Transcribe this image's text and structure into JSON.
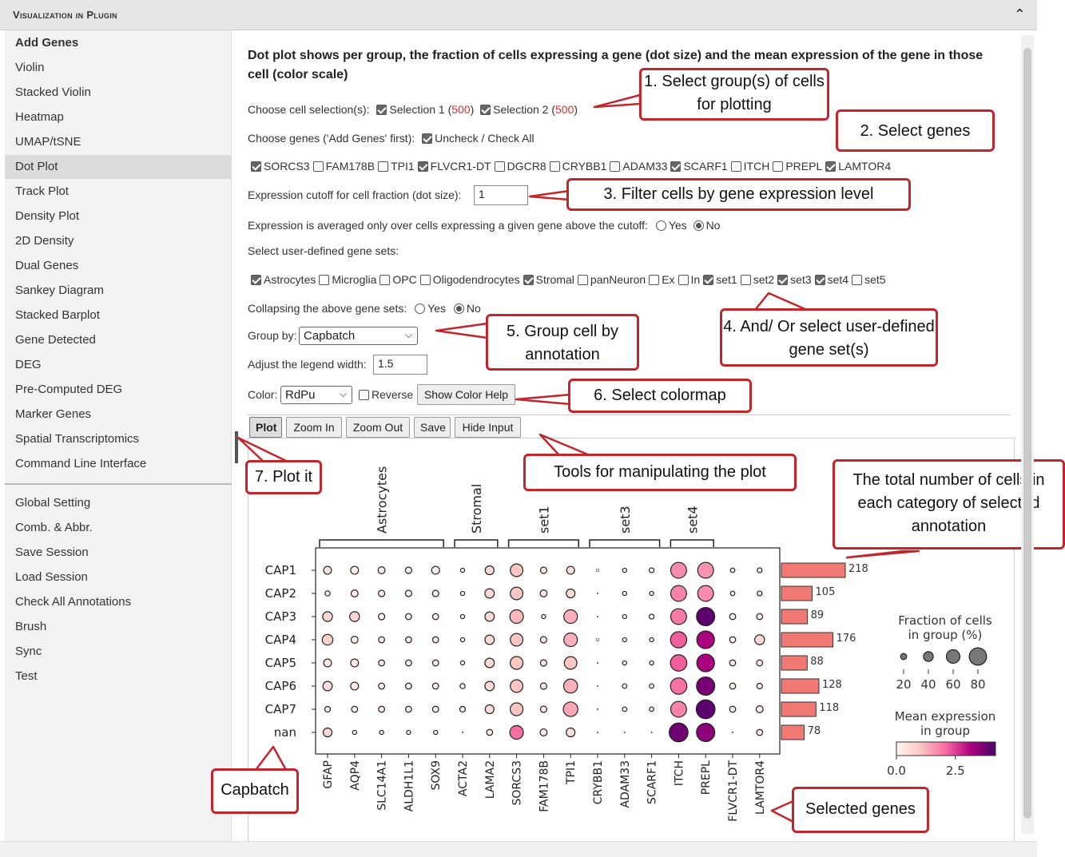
{
  "panel": {
    "title": "Visualization in Plugin",
    "collapse_icon": "chevron-up-icon"
  },
  "sidebar": {
    "group1": [
      "Add Genes",
      "Violin",
      "Stacked Violin",
      "Heatmap",
      "UMAP/tSNE",
      "Dot Plot",
      "Track Plot",
      "Density Plot",
      "2D Density",
      "Dual Genes",
      "Sankey Diagram",
      "Stacked Barplot",
      "Gene Detected",
      "DEG",
      "Pre-Computed DEG",
      "Marker Genes",
      "Spatial Transcriptomics",
      "Command Line Interface"
    ],
    "group2": [
      "Global Setting",
      "Comb. & Abbr.",
      "Save Session",
      "Load Session",
      "Check All Annotations",
      "Brush",
      "Sync",
      "Test"
    ],
    "active": "Dot Plot"
  },
  "form": {
    "heading": "Dot plot shows per group, the fraction of cells expressing a gene (dot size) and the mean expression of the gene in those cell (color scale)",
    "cell_selection_label": "Choose cell selection(s):",
    "selections": [
      {
        "name": "Selection 1",
        "count": "500",
        "checked": true
      },
      {
        "name": "Selection 2",
        "count": "500",
        "checked": true
      }
    ],
    "genes_label": "Choose genes ('Add Genes' first):",
    "check_all_label": "Uncheck / Check All",
    "genes": [
      {
        "name": "SORCS3",
        "checked": true
      },
      {
        "name": "FAM178B",
        "checked": false
      },
      {
        "name": "TPI1",
        "checked": false
      },
      {
        "name": "FLVCR1-DT",
        "checked": true
      },
      {
        "name": "DGCR8",
        "checked": false
      },
      {
        "name": "CRYBB1",
        "checked": false
      },
      {
        "name": "ADAM33",
        "checked": false
      },
      {
        "name": "SCARF1",
        "checked": true
      },
      {
        "name": "ITCH",
        "checked": false
      },
      {
        "name": "PREPL",
        "checked": false
      },
      {
        "name": "LAMTOR4",
        "checked": true
      }
    ],
    "cutoff_label": "Expression cutoff for cell fraction (dot size):",
    "cutoff_value": "1",
    "averaged_label": "Expression is averaged only over cells expressing a given gene above the cutoff:",
    "yes": "Yes",
    "no": "No",
    "gene_sets_label": "Select user-defined gene sets:",
    "gene_sets": [
      {
        "name": "Astrocytes",
        "checked": true
      },
      {
        "name": "Microglia",
        "checked": false
      },
      {
        "name": "OPC",
        "checked": false
      },
      {
        "name": "Oligodendrocytes",
        "checked": false
      },
      {
        "name": "Stromal",
        "checked": true
      },
      {
        "name": "panNeuron",
        "checked": false
      },
      {
        "name": "Ex",
        "checked": false
      },
      {
        "name": "In",
        "checked": false
      },
      {
        "name": "set1",
        "checked": true
      },
      {
        "name": "set2",
        "checked": false
      },
      {
        "name": "set3",
        "checked": true
      },
      {
        "name": "set4",
        "checked": true
      },
      {
        "name": "set5",
        "checked": false
      }
    ],
    "collapse_label": "Collapsing the above gene sets:",
    "group_by_label": "Group by:",
    "group_by_value": "Capbatch",
    "legend_width_label": "Adjust the legend width:",
    "legend_width_value": "1.5",
    "color_label": "Color:",
    "color_value": "RdPu",
    "reverse_label": "Reverse",
    "show_color_help": "Show Color Help"
  },
  "toolbar": {
    "plot": "Plot",
    "zoom_in": "Zoom In",
    "zoom_out": "Zoom Out",
    "save": "Save",
    "hide_input": "Hide Input"
  },
  "callouts": {
    "c1": "1. Select group(s) of cells for plotting",
    "c2": "2. Select genes",
    "c3": "3. Filter cells by gene expression level",
    "c4": "4. And/ Or select user-defined gene set(s)",
    "c5": "5. Group cell by annotation",
    "c6": "6. Select colormap",
    "c7": "7. Plot it",
    "tools": "Tools for manipulating the plot",
    "total": "The total number of cells in each category of selected annotation",
    "capbatch": "Capbatch",
    "selected_genes": "Selected genes"
  },
  "chart_data": {
    "type": "scatter",
    "subtype": "dotplot",
    "groups": [
      "CAP1",
      "CAP2",
      "CAP3",
      "CAP4",
      "CAP5",
      "CAP6",
      "CAP7",
      "nan"
    ],
    "genes": [
      "GFAP",
      "AQP4",
      "SLC14A1",
      "ALDH1L1",
      "SOX9",
      "ACTA2",
      "LAMA2",
      "SORCS3",
      "FAM178B",
      "TPI1",
      "CRYBB1",
      "ADAM33",
      "SCARF1",
      "ITCH",
      "PREPL",
      "FLVCR1-DT",
      "LAMTOR4"
    ],
    "gene_sets": [
      {
        "name": "Astrocytes",
        "genes": [
          "GFAP",
          "AQP4",
          "SLC14A1",
          "ALDH1L1",
          "SOX9"
        ]
      },
      {
        "name": "Stromal",
        "genes": [
          "ACTA2",
          "LAMA2"
        ]
      },
      {
        "name": "set1",
        "genes": [
          "SORCS3",
          "FAM178B",
          "TPI1"
        ]
      },
      {
        "name": "set3",
        "genes": [
          "CRYBB1",
          "ADAM33",
          "SCARF1"
        ]
      },
      {
        "name": "set4",
        "genes": [
          "ITCH",
          "PREPL"
        ]
      }
    ],
    "fraction_pct": [
      [
        30,
        30,
        25,
        22,
        30,
        10,
        35,
        55,
        22,
        30,
        4,
        10,
        14,
        72,
        72,
        12,
        14
      ],
      [
        15,
        25,
        22,
        22,
        22,
        10,
        38,
        55,
        25,
        35,
        0,
        10,
        10,
        72,
        72,
        12,
        14
      ],
      [
        40,
        40,
        22,
        20,
        20,
        10,
        38,
        60,
        10,
        60,
        0,
        10,
        14,
        72,
        85,
        20,
        20
      ],
      [
        45,
        25,
        20,
        20,
        20,
        10,
        38,
        55,
        22,
        60,
        4,
        10,
        10,
        74,
        82,
        20,
        40
      ],
      [
        30,
        30,
        20,
        20,
        20,
        10,
        38,
        56,
        22,
        55,
        0,
        10,
        10,
        75,
        82,
        20,
        20
      ],
      [
        38,
        30,
        20,
        20,
        20,
        15,
        38,
        55,
        22,
        62,
        0,
        12,
        12,
        75,
        85,
        20,
        18
      ],
      [
        18,
        20,
        20,
        20,
        20,
        18,
        35,
        56,
        22,
        65,
        0,
        12,
        12,
        72,
        88,
        20,
        25
      ],
      [
        35,
        10,
        10,
        10,
        10,
        0,
        20,
        60,
        25,
        35,
        0,
        0,
        0,
        88,
        85,
        0,
        20
      ]
    ],
    "mean_expression": [
      [
        0.4,
        0.2,
        0.2,
        0.2,
        0.2,
        0.1,
        0.6,
        1.0,
        0.3,
        0.5,
        0.1,
        0.1,
        0.1,
        1.7,
        1.6,
        0.2,
        0.2
      ],
      [
        0.2,
        0.2,
        0.2,
        0.2,
        0.2,
        0.1,
        0.6,
        1.0,
        0.3,
        0.6,
        0.0,
        0.1,
        0.1,
        1.8,
        1.7,
        0.2,
        0.2
      ],
      [
        0.7,
        0.7,
        0.2,
        0.2,
        0.2,
        0.1,
        0.6,
        1.2,
        0.1,
        1.3,
        0.0,
        0.1,
        0.1,
        1.9,
        4.0,
        0.2,
        0.2
      ],
      [
        0.8,
        0.2,
        0.2,
        0.2,
        0.2,
        0.1,
        0.6,
        1.0,
        0.3,
        1.3,
        0.1,
        0.1,
        0.1,
        2.2,
        3.2,
        0.2,
        0.6
      ],
      [
        0.3,
        0.3,
        0.2,
        0.2,
        0.2,
        0.1,
        0.6,
        1.0,
        0.3,
        1.0,
        0.0,
        0.1,
        0.1,
        2.2,
        3.2,
        0.2,
        0.2
      ],
      [
        0.5,
        0.3,
        0.2,
        0.2,
        0.2,
        0.2,
        0.6,
        1.0,
        0.3,
        1.3,
        0.0,
        0.1,
        0.1,
        2.0,
        3.7,
        0.2,
        0.2
      ],
      [
        0.2,
        0.2,
        0.2,
        0.2,
        0.2,
        0.2,
        0.5,
        1.0,
        0.3,
        1.4,
        0.0,
        0.1,
        0.1,
        1.8,
        4.0,
        0.2,
        0.2
      ],
      [
        0.6,
        0.1,
        0.1,
        0.1,
        0.1,
        0.0,
        0.3,
        2.0,
        0.3,
        0.5,
        0.0,
        0.0,
        0.0,
        3.8,
        3.5,
        0.0,
        0.2
      ]
    ],
    "cell_counts": [
      218,
      105,
      89,
      176,
      88,
      128,
      118,
      78
    ],
    "size_legend": {
      "title": "Fraction of cells in group (%)",
      "ticks": [
        20,
        40,
        60,
        80
      ]
    },
    "color_legend": {
      "title": "Mean expression in group",
      "ticks": [
        "0.0",
        "2.5"
      ],
      "range": [
        0,
        4.2
      ],
      "colormap": "RdPu"
    },
    "bar_color": "#f07a73"
  }
}
